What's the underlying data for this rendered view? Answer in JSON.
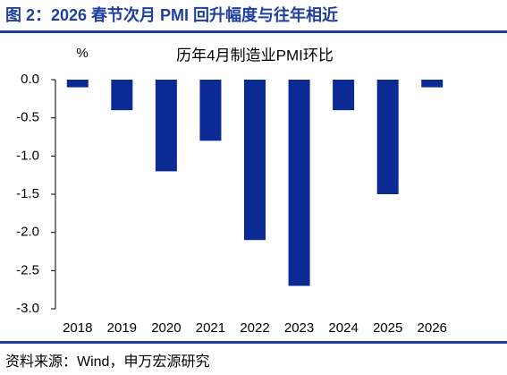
{
  "figure_title": "图 2：2026 春节次月 PMI 回升幅度与往年相近",
  "source": "资料来源：Wind，申万宏源研究",
  "chart_data": {
    "type": "bar",
    "title": "历年4月制造业PMI环比",
    "y_unit": "%",
    "categories": [
      "2018",
      "2019",
      "2020",
      "2021",
      "2022",
      "2023",
      "2024",
      "2025",
      "2026"
    ],
    "values": [
      -0.1,
      -0.4,
      -1.2,
      -0.8,
      -2.1,
      -2.7,
      -0.4,
      -1.5,
      -0.1
    ],
    "color": "#0b2a94",
    "ylim": [
      -3,
      0
    ],
    "yticks": [
      {
        "value": 0,
        "label": "0.0"
      },
      -0.5,
      {
        "value": -1,
        "label": "-1.0"
      },
      -1.5,
      {
        "value": -2,
        "label": "-2.0"
      },
      -2.5,
      {
        "value": -3,
        "label": "-3.0"
      }
    ],
    "grid": false
  }
}
